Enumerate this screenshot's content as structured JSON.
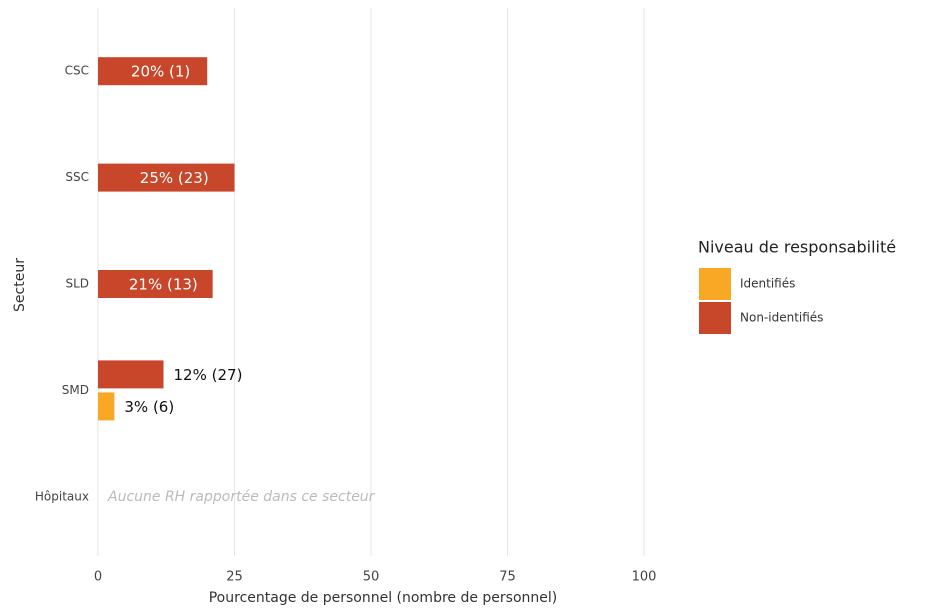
{
  "chart_data": {
    "type": "bar",
    "orientation": "horizontal",
    "categories": [
      "CSC",
      "SSC",
      "SLD",
      "SMD",
      "Hôpitaux"
    ],
    "series": [
      {
        "name": "Identifiés",
        "color": "#f9a825",
        "values": [
          null,
          null,
          null,
          3,
          null
        ],
        "value_labels": [
          null,
          null,
          null,
          "3% (6)",
          null
        ]
      },
      {
        "name": "Non-identifiés",
        "color": "#c8472b",
        "values": [
          20,
          25,
          21,
          12,
          null
        ],
        "value_labels": [
          "20% (1)",
          "25% (23)",
          "21% (13)",
          "12% (27)",
          null
        ]
      }
    ],
    "xlabel": "Pourcentage de personnel (nombre de personnel)",
    "ylabel": "Secteur",
    "legend_title": "Niveau de responsabilité",
    "annotation": "Aucune RH rapportée dans ce secteur",
    "xlim": [
      0,
      100
    ],
    "xticks": [
      0,
      25,
      50,
      75,
      100
    ],
    "grid": true,
    "legend": "right"
  }
}
